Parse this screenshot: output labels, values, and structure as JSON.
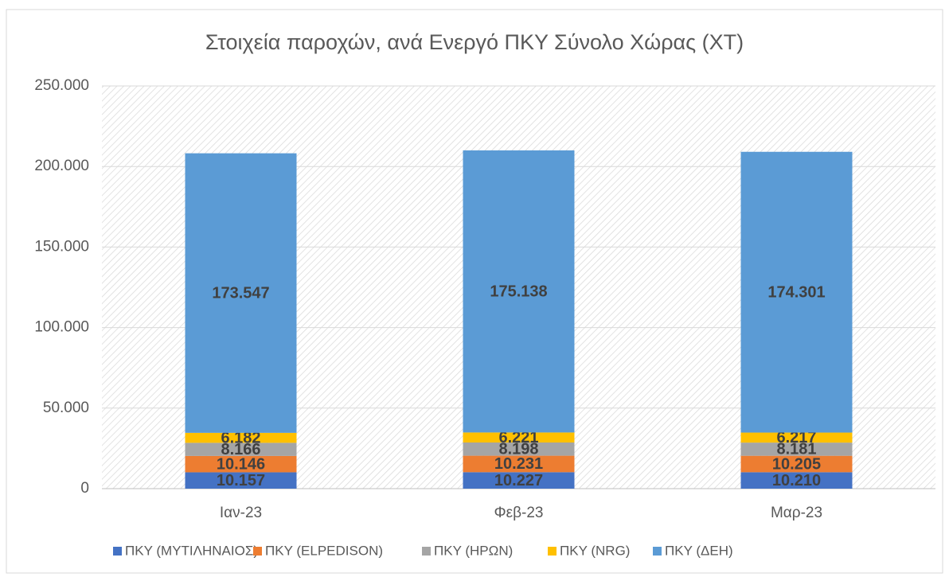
{
  "chart_data": {
    "type": "stacked_bar",
    "title": "Στοιχεία παροχών, ανά Ενεργό ΠΚΥ Σύνολο Χώρας (ΧΤ)",
    "categories": [
      "Ιαν-23",
      "Φεβ-23",
      "Μαρ-23"
    ],
    "series": [
      {
        "name": "ΠΚΥ (ΜΥΤΙΛΗΝΑΙΟΣ)",
        "color": "#4472c4",
        "values": [
          10157,
          10227,
          10210
        ],
        "value_labels": [
          "10.157",
          "10.227",
          "10.210"
        ]
      },
      {
        "name": "ΠΚΥ (ELPEDISON)",
        "color": "#ed7d31",
        "values": [
          10146,
          10231,
          10205
        ],
        "value_labels": [
          "10.146",
          "10.231",
          "10.205"
        ]
      },
      {
        "name": "ΠΚΥ (ΗΡΩΝ)",
        "color": "#a5a5a5",
        "values": [
          8166,
          8198,
          8181
        ],
        "value_labels": [
          "8.166",
          "8.198",
          "8.181"
        ]
      },
      {
        "name": "ΠΚΥ (NRG)",
        "color": "#ffc000",
        "values": [
          6182,
          6221,
          6217
        ],
        "value_labels": [
          "6.182",
          "6.221",
          "6.217"
        ]
      },
      {
        "name": "ΠΚΥ (ΔΕΗ)",
        "color": "#5b9bd5",
        "values": [
          173547,
          175138,
          174301
        ],
        "value_labels": [
          "173.547",
          "175.138",
          "174.301"
        ]
      }
    ],
    "ylim": [
      0,
      250000
    ],
    "yticks": [
      0,
      {
        "value": 50000,
        "label": "50.000"
      },
      {
        "value": 100000,
        "label": "100.000"
      },
      {
        "value": 150000,
        "label": "150.000"
      },
      {
        "value": 200000,
        "label": "200.000"
      },
      {
        "value": 250000,
        "label": "250.000"
      }
    ],
    "grid": true,
    "legend": "bottom"
  }
}
